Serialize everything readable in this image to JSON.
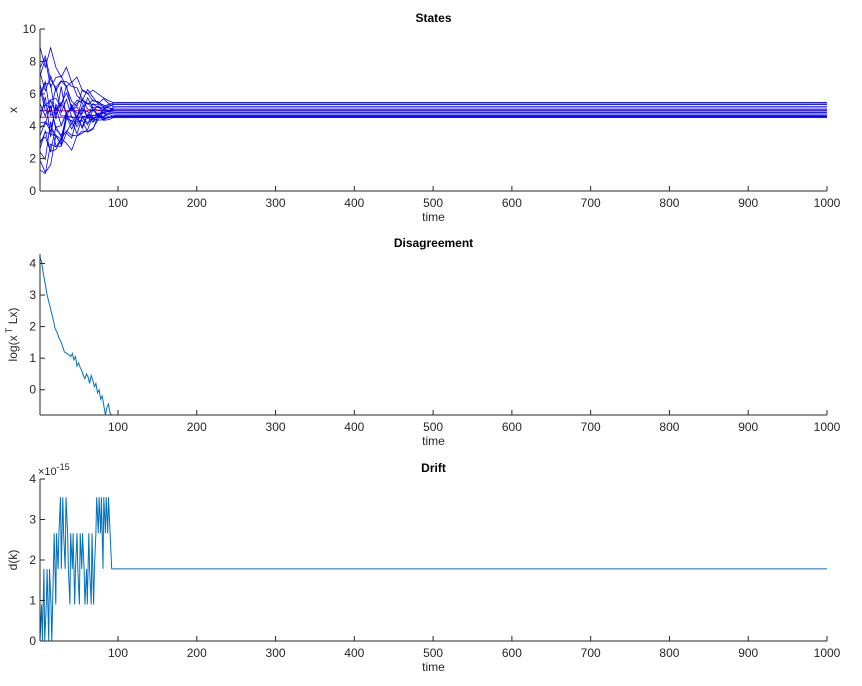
{
  "chart_data": [
    {
      "type": "line",
      "title": "States",
      "xlabel": "time",
      "ylabel": "x",
      "xlim": [
        1,
        1000
      ],
      "ylim": [
        0,
        10
      ],
      "xticks": [
        100,
        200,
        300,
        400,
        500,
        600,
        700,
        800,
        900,
        1000
      ],
      "yticks": [
        0,
        2,
        4,
        6,
        8,
        10
      ],
      "grid": false,
      "legend": "none",
      "colors": {
        "series": "#0000ff",
        "reference": "#ff0000"
      },
      "initial_states": [
        8.9,
        7.6,
        7.3,
        6.6,
        6.0,
        5.4,
        4.9,
        4.4,
        3.9,
        3.4,
        2.9,
        2.4,
        1.9,
        1.3,
        7.1,
        5.8,
        4.2,
        2.6,
        6.3,
        3.1
      ],
      "converged_states": [
        5.45,
        5.35,
        5.2,
        5.05,
        4.95,
        4.85,
        4.75,
        4.65,
        4.6,
        4.55
      ],
      "converge_time": 95,
      "reference_lines": [
        4.95,
        4.55
      ]
    },
    {
      "type": "line",
      "title": "Disagreement",
      "xlabel": "time",
      "ylabel": "log(x",
      "ylabel_sup": "T",
      "ylabel_tail": " Lx)",
      "xlim": [
        1,
        1000
      ],
      "ylim": [
        -0.8,
        4.3
      ],
      "xticks": [
        100,
        200,
        300,
        400,
        500,
        600,
        700,
        800,
        900,
        1000
      ],
      "yticks": [
        0,
        1,
        2,
        3,
        4
      ],
      "grid": false,
      "legend": "none",
      "colors": {
        "series": "#0072bd"
      },
      "x": [
        1,
        3,
        5,
        8,
        10,
        13,
        15,
        18,
        20,
        23,
        25,
        28,
        30,
        32,
        35,
        38,
        40,
        42,
        44,
        46,
        48,
        50,
        52,
        54,
        56,
        58,
        60,
        62,
        64,
        66,
        68,
        70,
        72,
        74,
        76,
        78,
        80,
        82,
        84,
        86,
        88,
        90,
        92,
        94,
        96,
        98,
        1000
      ],
      "y": [
        4.2,
        4.05,
        3.7,
        3.3,
        3.0,
        2.7,
        2.5,
        2.2,
        1.95,
        1.8,
        1.65,
        1.5,
        1.35,
        1.2,
        1.15,
        1.1,
        1.05,
        1.15,
        0.95,
        1.05,
        0.75,
        0.85,
        0.7,
        0.6,
        0.45,
        0.35,
        0.5,
        0.4,
        0.2,
        0.45,
        0.3,
        0.1,
        0.2,
        -0.1,
        0.0,
        -0.3,
        -0.2,
        -0.5,
        -0.8,
        -0.55,
        -0.45,
        -0.75,
        -0.8,
        -0.8,
        -0.8,
        -0.8,
        -0.8
      ]
    },
    {
      "type": "line",
      "title": "Drift",
      "xlabel": "time",
      "ylabel": "d(k)",
      "y_exponent": "×10",
      "y_exponent_power": "-15",
      "xlim": [
        1,
        1000
      ],
      "ylim": [
        0,
        4
      ],
      "xticks": [
        100,
        200,
        300,
        400,
        500,
        600,
        700,
        800,
        900,
        1000
      ],
      "yticks": [
        0,
        1,
        2,
        3,
        4
      ],
      "grid": false,
      "legend": "none",
      "colors": {
        "series": "#0072bd"
      },
      "steady_value": 1.78,
      "settle_time": 92,
      "x": [
        1,
        3,
        4,
        6,
        7,
        9,
        10,
        12,
        13,
        15,
        16,
        18,
        19,
        21,
        22,
        24,
        25,
        27,
        28,
        30,
        31,
        33,
        34,
        36,
        37,
        39,
        40,
        42,
        43,
        45,
        46,
        48,
        49,
        51,
        52,
        54,
        55,
        57,
        58,
        60,
        61,
        63,
        64,
        66,
        67,
        69,
        70,
        72,
        73,
        75,
        76,
        78,
        79,
        81,
        82,
        84,
        85,
        87,
        88,
        90,
        92,
        1000
      ],
      "y": [
        0,
        0.9,
        0,
        1.78,
        0,
        0.9,
        1.78,
        0,
        1.78,
        0.9,
        0,
        1.78,
        2.66,
        0.9,
        2.66,
        1.78,
        2.66,
        3.55,
        1.78,
        3.55,
        2.66,
        1.78,
        3.55,
        2.66,
        1.78,
        0.9,
        2.66,
        1.78,
        2.66,
        0.9,
        1.78,
        2.66,
        1.78,
        0.9,
        2.66,
        1.78,
        2.66,
        1.78,
        0.9,
        1.78,
        0.9,
        2.66,
        1.78,
        0.9,
        2.66,
        0.9,
        1.78,
        2.66,
        3.55,
        2.66,
        3.55,
        2.66,
        3.55,
        1.78,
        3.55,
        2.66,
        3.55,
        2.66,
        3.55,
        2.66,
        1.78,
        1.78
      ]
    }
  ]
}
